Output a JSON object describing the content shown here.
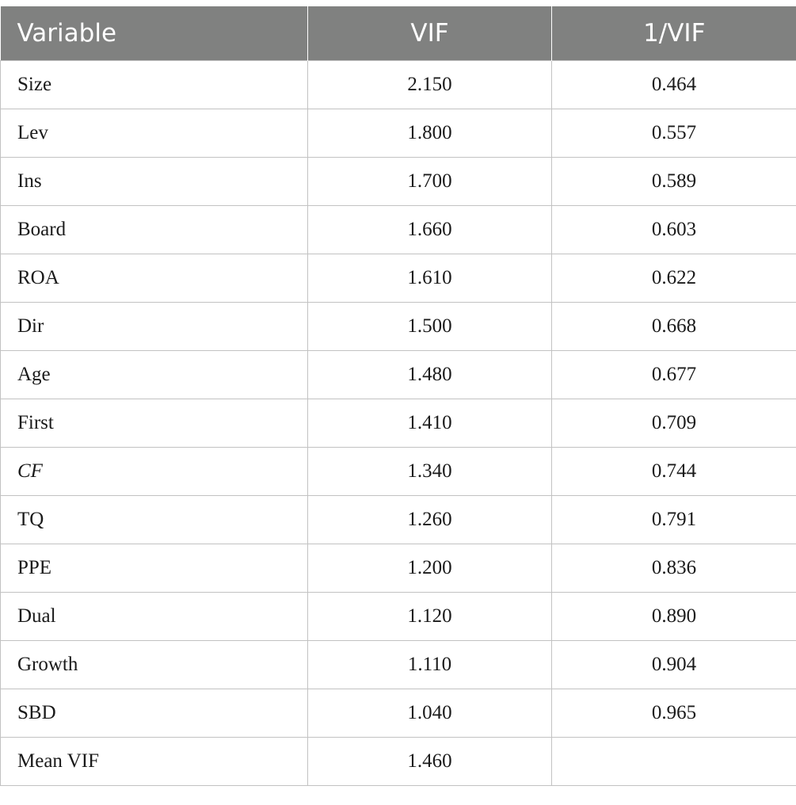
{
  "table": {
    "headers": [
      "Variable",
      "VIF",
      "1/VIF"
    ],
    "rows": [
      {
        "variable": "Size",
        "vif": "2.150",
        "inv_vif": "0.464"
      },
      {
        "variable": "Lev",
        "vif": "1.800",
        "inv_vif": "0.557"
      },
      {
        "variable": "Ins",
        "vif": "1.700",
        "inv_vif": "0.589"
      },
      {
        "variable": "Board",
        "vif": "1.660",
        "inv_vif": "0.603"
      },
      {
        "variable": "ROA",
        "vif": "1.610",
        "inv_vif": "0.622"
      },
      {
        "variable": "Dir",
        "vif": "1.500",
        "inv_vif": "0.668"
      },
      {
        "variable": "Age",
        "vif": "1.480",
        "inv_vif": "0.677"
      },
      {
        "variable": "First",
        "vif": "1.410",
        "inv_vif": "0.709"
      },
      {
        "variable": "CF",
        "vif": "1.340",
        "inv_vif": "0.744"
      },
      {
        "variable": "TQ",
        "vif": "1.260",
        "inv_vif": "0.791"
      },
      {
        "variable": "PPE",
        "vif": "1.200",
        "inv_vif": "0.836"
      },
      {
        "variable": "Dual",
        "vif": "1.120",
        "inv_vif": "0.890"
      },
      {
        "variable": "Growth",
        "vif": "1.110",
        "inv_vif": "0.904"
      },
      {
        "variable": "SBD",
        "vif": "1.040",
        "inv_vif": "0.965"
      },
      {
        "variable": "Mean VIF",
        "vif": "1.460",
        "inv_vif": ""
      }
    ]
  },
  "colors": {
    "header_bg": "#808180",
    "header_text": "#ffffff",
    "grid_line": "#c2c2c2"
  }
}
